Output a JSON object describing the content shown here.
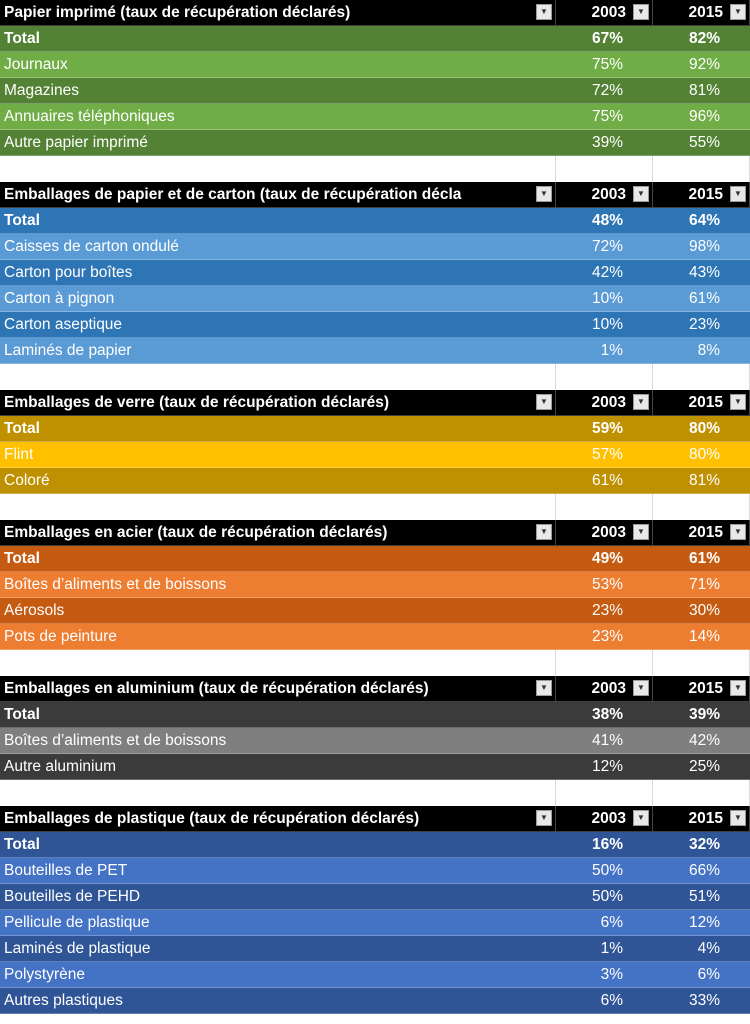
{
  "year_a": "2003",
  "year_b": "2015",
  "tables": [
    {
      "title": "Papier imprimé (taux de récupération déclarés)",
      "colors": {
        "total": "#548235",
        "odd": "#70ad47",
        "even": "#548235",
        "text": "#ffffff"
      },
      "rows": [
        {
          "label": "Total",
          "a": "67%",
          "b": "82%",
          "total": true
        },
        {
          "label": "Journaux",
          "a": "75%",
          "b": "92%"
        },
        {
          "label": "Magazines",
          "a": "72%",
          "b": "81%"
        },
        {
          "label": "Annuaires téléphoniques",
          "a": "75%",
          "b": "96%"
        },
        {
          "label": "Autre papier imprimé",
          "a": "39%",
          "b": "55%"
        }
      ]
    },
    {
      "title": "Emballages de papier et de carton (taux de récupération décla",
      "colors": {
        "total": "#2e75b6",
        "odd": "#5b9bd5",
        "even": "#2e75b6",
        "text": "#ffffff"
      },
      "rows": [
        {
          "label": "Total",
          "a": "48%",
          "b": "64%",
          "total": true
        },
        {
          "label": "Caisses de carton ondulé",
          "a": "72%",
          "b": "98%"
        },
        {
          "label": "Carton pour boîtes",
          "a": "42%",
          "b": "43%"
        },
        {
          "label": "Carton à pignon",
          "a": "10%",
          "b": "61%"
        },
        {
          "label": "Carton aseptique",
          "a": "10%",
          "b": "23%"
        },
        {
          "label": "Laminés de papier",
          "a": "1%",
          "b": "8%"
        }
      ]
    },
    {
      "title": "Emballages de verre (taux de récupération déclarés)",
      "colors": {
        "total": "#bf9000",
        "odd": "#ffc000",
        "even": "#bf9000",
        "text": "#ffffff"
      },
      "rows": [
        {
          "label": "Total",
          "a": "59%",
          "b": "80%",
          "total": true
        },
        {
          "label": "Flint",
          "a": "57%",
          "b": "80%"
        },
        {
          "label": "Coloré",
          "a": "61%",
          "b": "81%"
        }
      ]
    },
    {
      "title": "Emballages en acier (taux de récupération déclarés)",
      "colors": {
        "total": "#c55a11",
        "odd": "#ed7d31",
        "even": "#c55a11",
        "text": "#ffffff"
      },
      "rows": [
        {
          "label": "Total",
          "a": "49%",
          "b": "61%",
          "total": true
        },
        {
          "label": "Boîtes d’aliments et de boissons",
          "a": "53%",
          "b": "71%"
        },
        {
          "label": "Aérosols",
          "a": "23%",
          "b": "30%"
        },
        {
          "label": "Pots de peinture",
          "a": "23%",
          "b": "14%"
        }
      ]
    },
    {
      "title": "Emballages en aluminium (taux de récupération déclarés)",
      "colors": {
        "total": "#3b3b3b",
        "odd": "#7f7f7f",
        "even": "#3b3b3b",
        "text": "#ffffff"
      },
      "rows": [
        {
          "label": "Total",
          "a": "38%",
          "b": "39%",
          "total": true
        },
        {
          "label": "Boîtes d’aliments et de boissons",
          "a": "41%",
          "b": "42%"
        },
        {
          "label": "Autre aluminium",
          "a": "12%",
          "b": "25%"
        }
      ]
    },
    {
      "title": "Emballages de plastique (taux de récupération déclarés)",
      "colors": {
        "total": "#2f5597",
        "odd": "#4472c4",
        "even": "#2f5597",
        "text": "#ffffff"
      },
      "rows": [
        {
          "label": "Total",
          "a": "16%",
          "b": "32%",
          "total": true
        },
        {
          "label": "Bouteilles de PET",
          "a": "50%",
          "b": "66%"
        },
        {
          "label": "Bouteilles de PEHD",
          "a": "50%",
          "b": "51%"
        },
        {
          "label": "Pellicule de plastique",
          "a": "6%",
          "b": "12%"
        },
        {
          "label": "Laminés de plastique",
          "a": "1%",
          "b": "4%"
        },
        {
          "label": "Polystyrène",
          "a": "3%",
          "b": "6%"
        },
        {
          "label": "Autres plastiques",
          "a": "6%",
          "b": "33%"
        }
      ]
    }
  ]
}
